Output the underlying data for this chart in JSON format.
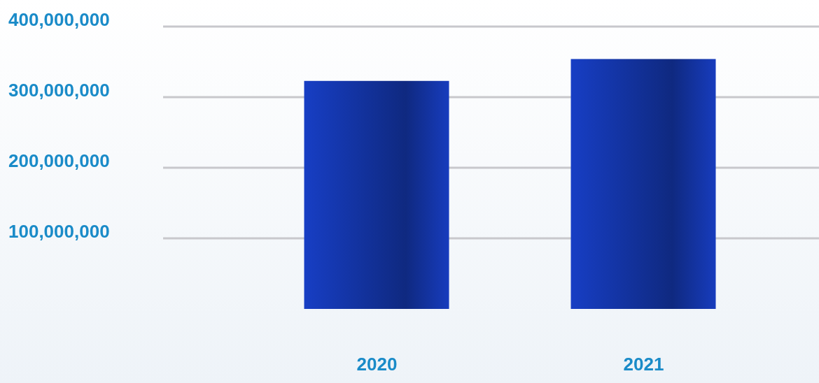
{
  "chart_data": {
    "type": "bar",
    "categories": [
      "2020",
      "2021"
    ],
    "values": [
      323000000,
      354000000
    ],
    "color": "#1538b0",
    "ylim": [
      0,
      400000000
    ],
    "yticks": [
      {
        "value": 100000000,
        "label": "100,000,000"
      },
      {
        "value": 200000000,
        "label": "200,000,000"
      },
      {
        "value": 300000000,
        "label": "300,000,000"
      },
      {
        "value": 400000000,
        "label": "400,000,000"
      }
    ],
    "grid": "y"
  }
}
